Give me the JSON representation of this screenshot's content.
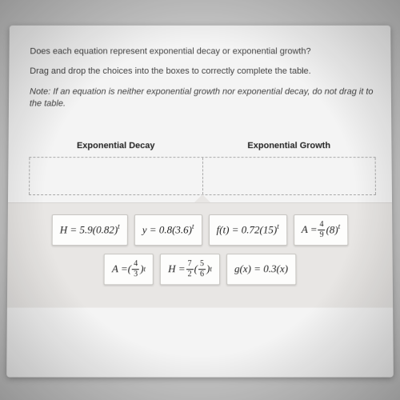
{
  "instructions": {
    "line1": "Does each equation represent exponential decay or exponential growth?",
    "line2": "Drag and drop the choices into the boxes to correctly complete the table.",
    "note_label": "Note:",
    "note_text": "If an equation is neither exponential growth nor exponential decay, do not drag it to the table."
  },
  "table": {
    "headers": {
      "decay": "Exponential Decay",
      "growth": "Exponential Growth"
    }
  },
  "tiles": {
    "row1": {
      "t1_pre": "H = 5.9(0.82)",
      "t2_pre": "y = 0.8(3.6)",
      "t3_pre": "f(t) = 0.72(15)",
      "t4_pre": "A = ",
      "t4_num": "4",
      "t4_den": "9",
      "t4_post": "(8)"
    },
    "row2": {
      "t5_pre": "A = ",
      "t5_num": "4",
      "t5_den": "3",
      "t6_pre": "H = ",
      "t6_num1": "7",
      "t6_den1": "2",
      "t6_num2": "5",
      "t6_den2": "6",
      "t7_pre": "g(x) = 0.3(x)"
    }
  },
  "style": {
    "body_bg": "#c8c8c8",
    "frame_bg": "#f4f4f4",
    "tray_bg": "#e8e6e4",
    "tile_bg": "#fdfdfc",
    "tile_border": "#c8c6c2",
    "text_color": "#444",
    "dash_color": "#aaa",
    "instruction_fontsize": 11,
    "tile_fontsize": 13
  }
}
